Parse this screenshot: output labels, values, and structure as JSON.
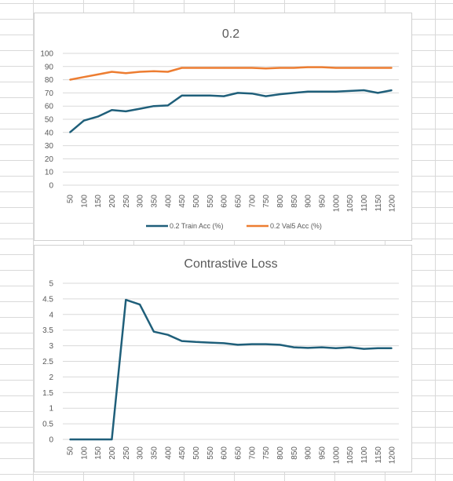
{
  "chart_data": [
    {
      "type": "line",
      "title": "0.2",
      "x": [
        50,
        100,
        150,
        200,
        250,
        300,
        350,
        400,
        450,
        500,
        550,
        600,
        650,
        700,
        750,
        800,
        850,
        900,
        950,
        1000,
        1050,
        1100,
        1150,
        1200
      ],
      "ylim": [
        0,
        100
      ],
      "yticks": [
        0,
        10,
        20,
        30,
        40,
        50,
        60,
        70,
        80,
        90,
        100
      ],
      "grid": true,
      "legend_position": "bottom",
      "series": [
        {
          "name": "0.2 Train Acc (%)",
          "color": "#1f5f7a",
          "values": [
            40,
            49,
            52,
            57,
            56,
            58,
            60,
            60.5,
            68,
            68,
            68,
            67.5,
            70,
            69.5,
            67.5,
            69,
            70,
            71,
            71,
            71,
            71.5,
            72,
            70,
            72
          ]
        },
        {
          "name": "0.2 Val5 Acc (%)",
          "color": "#ed7d31",
          "values": [
            80,
            82,
            84,
            86,
            85,
            86,
            86.5,
            86,
            89,
            89,
            89,
            89,
            89,
            89,
            88.5,
            89,
            89,
            89.5,
            89.5,
            89,
            89,
            89,
            89,
            89
          ]
        }
      ]
    },
    {
      "type": "line",
      "title": "Contrastive Loss",
      "x": [
        50,
        100,
        150,
        200,
        250,
        300,
        350,
        400,
        450,
        500,
        550,
        600,
        650,
        700,
        750,
        800,
        850,
        900,
        950,
        1000,
        1050,
        1100,
        1150,
        1200
      ],
      "ylim": [
        0,
        5
      ],
      "yticks": [
        0,
        0.5,
        1,
        1.5,
        2,
        2.5,
        3,
        3.5,
        4,
        4.5,
        5
      ],
      "grid": true,
      "series": [
        {
          "color": "#1f5f7a",
          "values": [
            0,
            0,
            0,
            0,
            4.47,
            4.32,
            3.45,
            3.35,
            3.15,
            3.12,
            3.1,
            3.08,
            3.03,
            3.05,
            3.05,
            3.03,
            2.95,
            2.93,
            2.95,
            2.92,
            2.95,
            2.9,
            2.92,
            2.92
          ]
        }
      ]
    }
  ]
}
